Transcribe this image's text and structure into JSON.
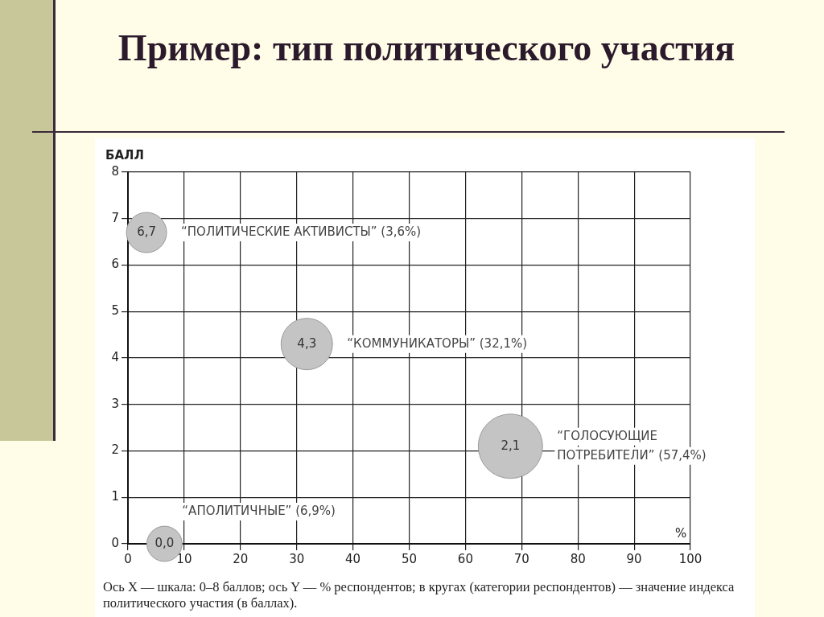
{
  "chart_data": {
    "type": "bubble",
    "title": "Пример: тип политического участия",
    "xlabel": "%",
    "ylabel": "БАЛЛ",
    "series": [
      {
        "name": "“ПОЛИТИЧЕСКИЕ АКТИВИСТЫ” (3,6%)",
        "color": "#c4c4c4",
        "x": [
          3.3
        ],
        "values": [
          6.7
        ],
        "sizes": [
          0.39
        ],
        "value_labels": [
          "6,7"
        ]
      },
      {
        "name": "“КОММУНИКАТОРЫ” (32,1%)",
        "color": "#c4c4c4",
        "x": [
          31.8
        ],
        "values": [
          4.3
        ],
        "sizes": [
          0.64
        ],
        "value_labels": [
          "4,3"
        ]
      },
      {
        "name": "“ГОЛОСУЮЩИЕ ПОТРЕБИТЕЛИ” (57,4%)",
        "color": "#c4c4c4",
        "x": [
          68
        ],
        "values": [
          2.1
        ],
        "sizes": [
          1
        ],
        "value_labels": [
          "2,1"
        ]
      },
      {
        "name": "“АПОЛИТИЧНЫЕ” (6,9%)",
        "color": "#c4c4c4",
        "x": [
          6.5
        ],
        "values": [
          0
        ],
        "sizes": [
          0.3
        ],
        "value_labels": [
          "0,0"
        ]
      }
    ],
    "xlim": [
      0,
      100
    ],
    "xticks": [
      0,
      10,
      20,
      30,
      40,
      50,
      60,
      70,
      80,
      90,
      100
    ],
    "ylim": [
      0,
      8
    ],
    "yticks": [
      0,
      1,
      2,
      3,
      4,
      5,
      6,
      7,
      8
    ],
    "grid": true,
    "legend": false,
    "annotations": [
      "Ось X — шкала: 0–8 баллов; ось Y — % респондентов; в кругах (категории респондентов) — значение индекса политического участия (в баллах)."
    ]
  }
}
